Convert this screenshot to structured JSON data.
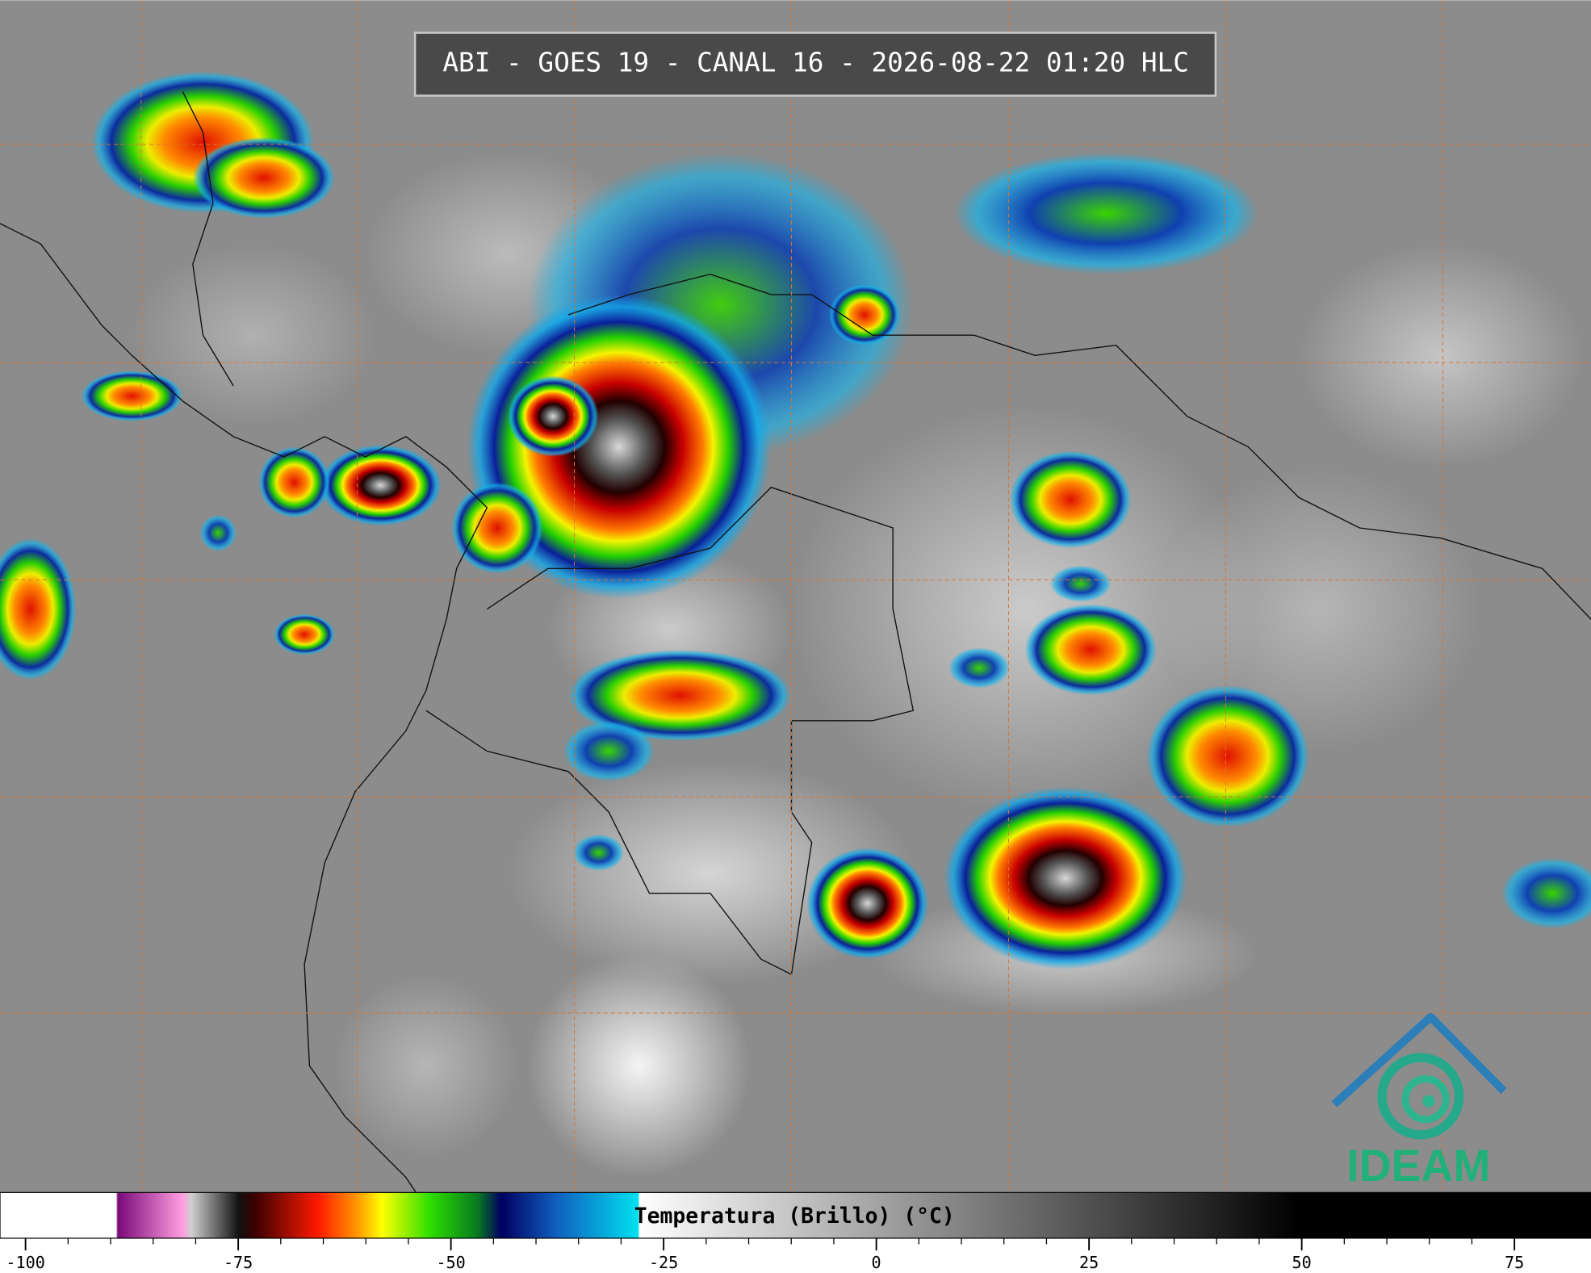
{
  "header": {
    "title": "ABI - GOES 19 - CANAL 16 - 2026-08-22 01:20 HLC"
  },
  "colorbar": {
    "label": "Temperatura (Brillo) (°C)",
    "lim": [
      -103,
      84
    ],
    "ticks": [
      -100,
      -75,
      -50,
      -25,
      0,
      25,
      50,
      75
    ]
  },
  "logo": {
    "text": "IDEAM"
  }
}
